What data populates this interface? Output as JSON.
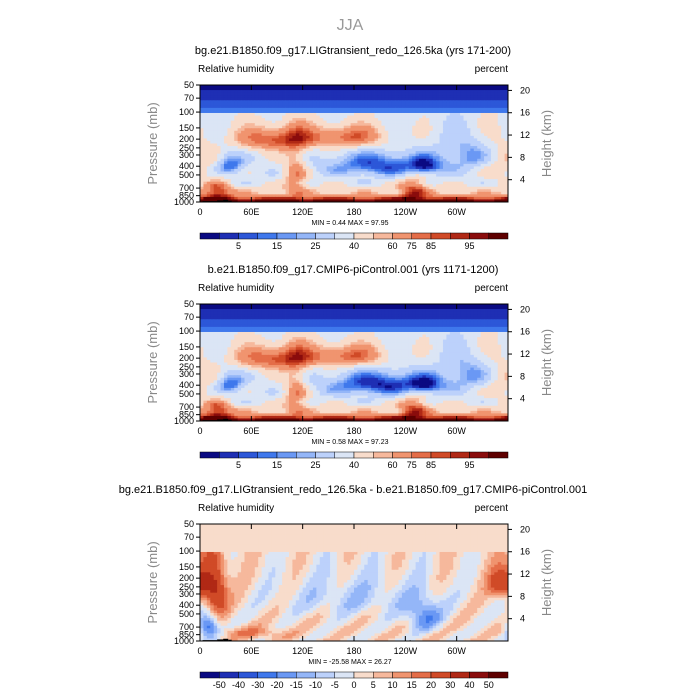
{
  "figure": {
    "title": "JJA",
    "variable_label": "Relative humidity",
    "units_label": "percent",
    "ylabel_left": "Pressure (mb)",
    "ylabel_right": "Height (km)",
    "colors": {
      "rh_levels": [
        "#0a0a82",
        "#1e2fb4",
        "#2c57d8",
        "#3f78ec",
        "#6a98f4",
        "#94b6f8",
        "#bcd1fb",
        "#dbe5f5",
        "#f8dccb",
        "#f6b89c",
        "#f0946f",
        "#e46d48",
        "#d04a27",
        "#b02815",
        "#8a0c0c",
        "#5e0000"
      ],
      "diff_levels": [
        "#0a0a82",
        "#1e2fb4",
        "#2c57d8",
        "#3f78ec",
        "#6a98f4",
        "#94b6f8",
        "#bcd1fb",
        "#dbe5f5",
        "#f8dccb",
        "#f6b89c",
        "#f0946f",
        "#e46d48",
        "#d04a27",
        "#b02815",
        "#8a0c0c",
        "#5e0000"
      ],
      "topography": "#000000"
    }
  },
  "chart_data": [
    {
      "type": "heatmap",
      "title": "bg.e21.B1850.f09_g17.LIGtransient_redo_126.5ka (yrs 171-200)",
      "left_label": "Relative humidity",
      "right_label": "percent",
      "xlabel": "",
      "ylabel": "Pressure (mb)",
      "ylabel_right": "Height (km)",
      "x_ticks": [
        "0",
        "60E",
        "120E",
        "180",
        "120W",
        "60W"
      ],
      "x_tick_values": [
        0,
        60,
        120,
        180,
        240,
        300
      ],
      "xlim": [
        0,
        360
      ],
      "y_ticks": [
        "50",
        "70",
        "100",
        "150",
        "200",
        "250",
        "300",
        "400",
        "500",
        "700",
        "850",
        "1000"
      ],
      "y_tick_values": [
        50,
        70,
        100,
        150,
        200,
        250,
        300,
        400,
        500,
        700,
        850,
        1000
      ],
      "ylim": [
        1000,
        50
      ],
      "height_ticks": [
        "20",
        "16",
        "12",
        "8",
        "4"
      ],
      "height_tick_values": [
        20,
        16,
        12,
        8,
        4
      ],
      "stats": {
        "min_label": "MIN =",
        "min": "0.44",
        "max_label": "MAX =",
        "max": "97.95"
      },
      "colorbar_labels": [
        "5",
        "15",
        "25",
        "40",
        "60",
        "75",
        "85",
        "95"
      ],
      "colorbar_label_boundaries": [
        2,
        4,
        6,
        8,
        10,
        11,
        12,
        14
      ],
      "field": "rh_mean",
      "min_value": 0.44,
      "max_value": 97.95
    },
    {
      "type": "heatmap",
      "title": "b.e21.B1850.f09_g17.CMIP6-piControl.001 (yrs 1171-1200)",
      "left_label": "Relative humidity",
      "right_label": "percent",
      "xlabel": "",
      "ylabel": "Pressure (mb)",
      "ylabel_right": "Height (km)",
      "x_ticks": [
        "0",
        "60E",
        "120E",
        "180",
        "120W",
        "60W"
      ],
      "x_tick_values": [
        0,
        60,
        120,
        180,
        240,
        300
      ],
      "xlim": [
        0,
        360
      ],
      "y_ticks": [
        "50",
        "70",
        "100",
        "150",
        "200",
        "250",
        "300",
        "400",
        "500",
        "700",
        "850",
        "1000"
      ],
      "y_tick_values": [
        50,
        70,
        100,
        150,
        200,
        250,
        300,
        400,
        500,
        700,
        850,
        1000
      ],
      "ylim": [
        1000,
        50
      ],
      "height_ticks": [
        "20",
        "16",
        "12",
        "8",
        "4"
      ],
      "height_tick_values": [
        20,
        16,
        12,
        8,
        4
      ],
      "stats": {
        "min_label": "MIN =",
        "min": "0.58",
        "max_label": "MAX =",
        "max": "97.23"
      },
      "colorbar_labels": [
        "5",
        "15",
        "25",
        "40",
        "60",
        "75",
        "85",
        "95"
      ],
      "colorbar_label_boundaries": [
        2,
        4,
        6,
        8,
        10,
        11,
        12,
        14
      ],
      "field": "rh_mean",
      "min_value": 0.58,
      "max_value": 97.23
    },
    {
      "type": "heatmap",
      "title": "bg.e21.B1850.f09_g17.LIGtransient_redo_126.5ka - b.e21.B1850.f09_g17.CMIP6-piControl.001",
      "left_label": "Relative humidity",
      "right_label": "percent",
      "xlabel": "",
      "ylabel": "Pressure (mb)",
      "ylabel_right": "Height (km)",
      "x_ticks": [
        "0",
        "60E",
        "120E",
        "180",
        "120W",
        "60W"
      ],
      "x_tick_values": [
        0,
        60,
        120,
        180,
        240,
        300
      ],
      "xlim": [
        0,
        360
      ],
      "y_ticks": [
        "50",
        "70",
        "100",
        "150",
        "200",
        "250",
        "300",
        "400",
        "500",
        "700",
        "850",
        "1000"
      ],
      "y_tick_values": [
        50,
        70,
        100,
        150,
        200,
        250,
        300,
        400,
        500,
        700,
        850,
        1000
      ],
      "ylim": [
        1000,
        50
      ],
      "height_ticks": [
        "20",
        "16",
        "12",
        "8",
        "4"
      ],
      "height_tick_values": [
        20,
        16,
        12,
        8,
        4
      ],
      "stats": {
        "min_label": "MIN =",
        "min": "-25.58",
        "max_label": "MAX =",
        "max": "26.27"
      },
      "colorbar_labels": [
        "-50",
        "-40",
        "-30",
        "-20",
        "-15",
        "-10",
        "-5",
        "0",
        "5",
        "10",
        "15",
        "20",
        "30",
        "40",
        "50"
      ],
      "colorbar_label_boundaries": [
        1,
        2,
        3,
        4,
        5,
        6,
        7,
        8,
        9,
        10,
        11,
        12,
        13,
        14,
        15
      ],
      "field": "rh_diff",
      "min_value": -25.58,
      "max_value": 26.27
    }
  ]
}
